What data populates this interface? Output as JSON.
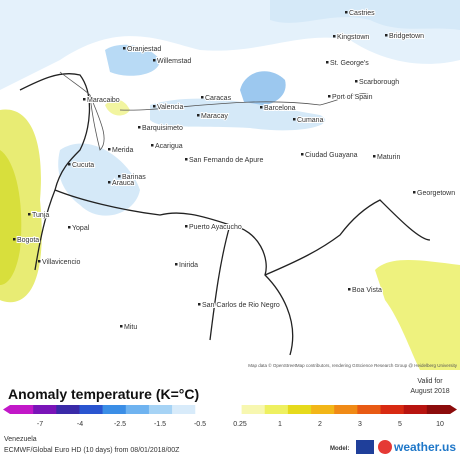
{
  "map": {
    "attribution": "Map data © OpenStreetMap contributors, rendering GIScience Research Group @ Heidelberg University",
    "cities": [
      "Castries",
      "Kingstown",
      "Bridgetown",
      "St. George's",
      "Scarborough",
      "Port of Spain",
      "Oranjestad",
      "Willemstad",
      "Maracaibo",
      "Valencia",
      "Caracas",
      "Barcelona",
      "Cumana",
      "Maracay",
      "Maturin",
      "Ciudad Guayana",
      "Georgetown",
      "Barquisimeto",
      "Merida",
      "Barinas",
      "Acarigua",
      "San Fernando de Apure",
      "Cucuta",
      "Arauca",
      "Bogota",
      "Tunja",
      "Puerto Ayacucho",
      "Boa Vista",
      "Inirida",
      "Mitu",
      "San Carlos de Rio Negro",
      "Yopal",
      "Villavicencio"
    ]
  },
  "legend": {
    "title": "Anomaly temperature (K=°C)",
    "valid": "Valid for",
    "period": "August 2018",
    "labels": [
      "-7",
      "-4",
      "-2.5",
      "-1.5",
      "-0.5",
      "0.25",
      "1",
      "2",
      "3",
      "5",
      "10"
    ]
  },
  "footer": {
    "region": "Venezuela",
    "model_run": "ECMWF/Global Euro HD (10 days) from 08/01/2018/00Z",
    "model_label": "Model:",
    "brand": "weather.us"
  }
}
